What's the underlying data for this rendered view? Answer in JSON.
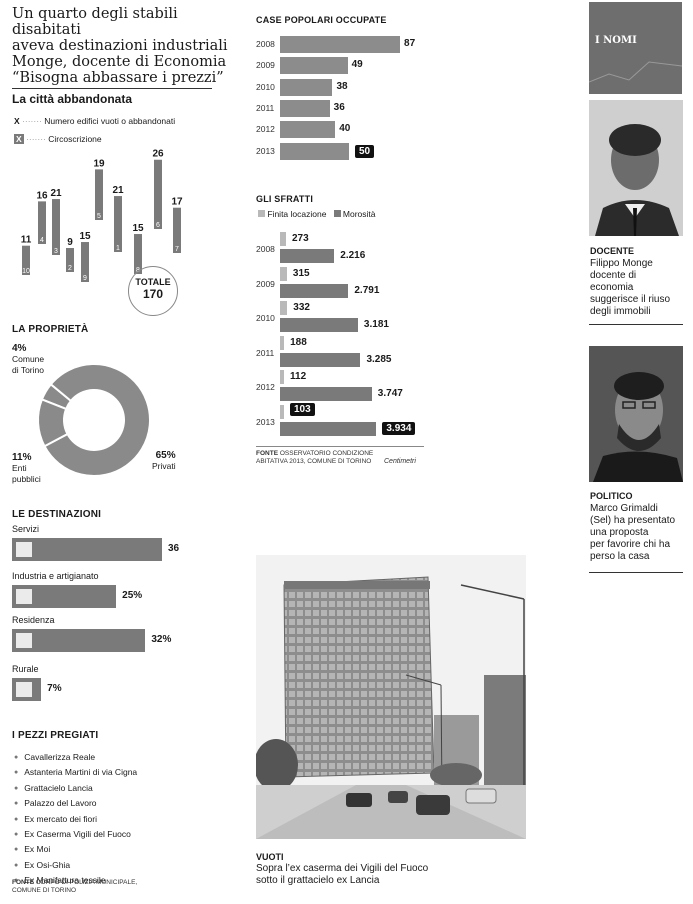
{
  "headline": [
    "Un quarto degli stabili disabitati",
    "aveva destinazioni industriali",
    "Monge, docente di Economia",
    "“Bisogna abbassare i prezzi”"
  ],
  "citta": {
    "title": "La città abbandonata",
    "legend_num": "Numero edifici vuoti o abbandonati",
    "legend_circ": "Circoscrizione",
    "legend_x": "X",
    "total_label": "TOTALE",
    "total_value": "170"
  },
  "chart_data": [
    {
      "type": "bar",
      "title": "La città abbandonata",
      "categories": [
        "10",
        "4",
        "3",
        "2",
        "9",
        "5",
        "1",
        "8",
        "6",
        "7"
      ],
      "values": [
        11,
        16,
        21,
        9,
        15,
        19,
        21,
        15,
        26,
        17
      ]
    },
    {
      "type": "pie",
      "title": "LA PROPRIETÀ",
      "labels": [
        "Comune di Torino",
        "Privati",
        "Enti pubblici"
      ],
      "values": [
        4,
        65,
        11
      ]
    },
    {
      "type": "bar",
      "title": "LE DESTINAZIONI",
      "categories": [
        "Servizi",
        "Industria e artigianato",
        "Residenza",
        "Rurale"
      ],
      "values": [
        36,
        25,
        32,
        7
      ]
    },
    {
      "type": "bar",
      "title": "CASE POPOLARI OCCUPATE",
      "categories": [
        "2008",
        "2009",
        "2010",
        "2011",
        "2012",
        "2013"
      ],
      "values": [
        87,
        49,
        38,
        36,
        40,
        50
      ]
    },
    {
      "type": "bar",
      "title": "GLI SFRATTI",
      "categories": [
        "2008",
        "2009",
        "2010",
        "2011",
        "2012",
        "2013"
      ],
      "series": [
        {
          "name": "Finita locazione",
          "values": [
            273,
            315,
            332,
            188,
            112,
            103
          ]
        },
        {
          "name": "Morosità",
          "values": [
            2216,
            2791,
            3181,
            3285,
            3747,
            3934
          ]
        }
      ]
    }
  ],
  "proprieta": {
    "title": "LA PROPRIETÀ",
    "comune_pct": "4%",
    "comune_label": [
      "Comune",
      "di Torino"
    ],
    "privati_pct": "65%",
    "privati_label": "Privati",
    "enti_pct": "11%",
    "enti_label": [
      "Enti",
      "pubblici"
    ]
  },
  "destinazioni": {
    "title": "LE DESTINAZIONI",
    "items": [
      {
        "label": "Servizi",
        "value_text": "36"
      },
      {
        "label": "Industria e artigianato",
        "value_text": "25%"
      },
      {
        "label": "Residenza",
        "value_text": "32%"
      },
      {
        "label": "Rurale",
        "value_text": "7%"
      }
    ]
  },
  "pezzi": {
    "title": "I PEZZI PREGIATI",
    "items": [
      "Cavallerizza Reale",
      "Astanteria Martini di via Cigna",
      "Grattacielo Lancia",
      "Palazzo del Lavoro",
      "Ex mercato dei fiori",
      "Ex Caserma Vigili del Fuoco",
      "Ex Moi",
      "Ex Osi-Ghia",
      "Ex Manifattura tessile"
    ],
    "fonte_label": "FONTE",
    "fonte_lines": [
      "CORPO DI POLIZIA MUNICIPALE,",
      "COMUNE DI TORINO"
    ]
  },
  "case": {
    "title": "CASE POPOLARI OCCUPATE",
    "years": [
      "2008",
      "2009",
      "2010",
      "2011",
      "2012",
      "2013"
    ],
    "values_text": [
      "87",
      "49",
      "38",
      "36",
      "40",
      "50"
    ]
  },
  "sfratti": {
    "title": "GLI SFRATTI",
    "legend_a": "Finita locazione",
    "legend_b": "Morosità",
    "years": [
      "2008",
      "2009",
      "2010",
      "2011",
      "2012",
      "2013"
    ],
    "a_text": [
      "273",
      "315",
      "332",
      "188",
      "112",
      "103"
    ],
    "b_text": [
      "2.216",
      "2.791",
      "3.181",
      "3.285",
      "3.747",
      "3.934"
    ],
    "fonte_label": "FONTE",
    "fonte_lines": [
      "OSSERVATORIO CONDIZIONE",
      "ABITATIVA 2013, COMUNE DI TORINO"
    ],
    "credit": "Centimetri"
  },
  "nomi": {
    "header": "I NOMI",
    "person1": {
      "role": "DOCENTE",
      "caption": [
        "Filippo Monge",
        "docente di",
        "economia",
        "suggerisce il riuso",
        "degli immobili"
      ]
    },
    "person2": {
      "role": "POLITICO",
      "caption": [
        "Marco Grimaldi",
        "(Sel) ha presentato",
        "una proposta",
        "per favorire chi ha",
        "perso la casa"
      ]
    }
  },
  "photo": {
    "title": "VUOTI",
    "caption": [
      "Sopra l’ex caserma dei Vigili del Fuoco",
      "sotto il grattacielo ex Lancia"
    ]
  },
  "colors": {
    "bar_dark": "#7a7a7a",
    "bar_light": "#b9b9b9",
    "accent": "#111111"
  }
}
